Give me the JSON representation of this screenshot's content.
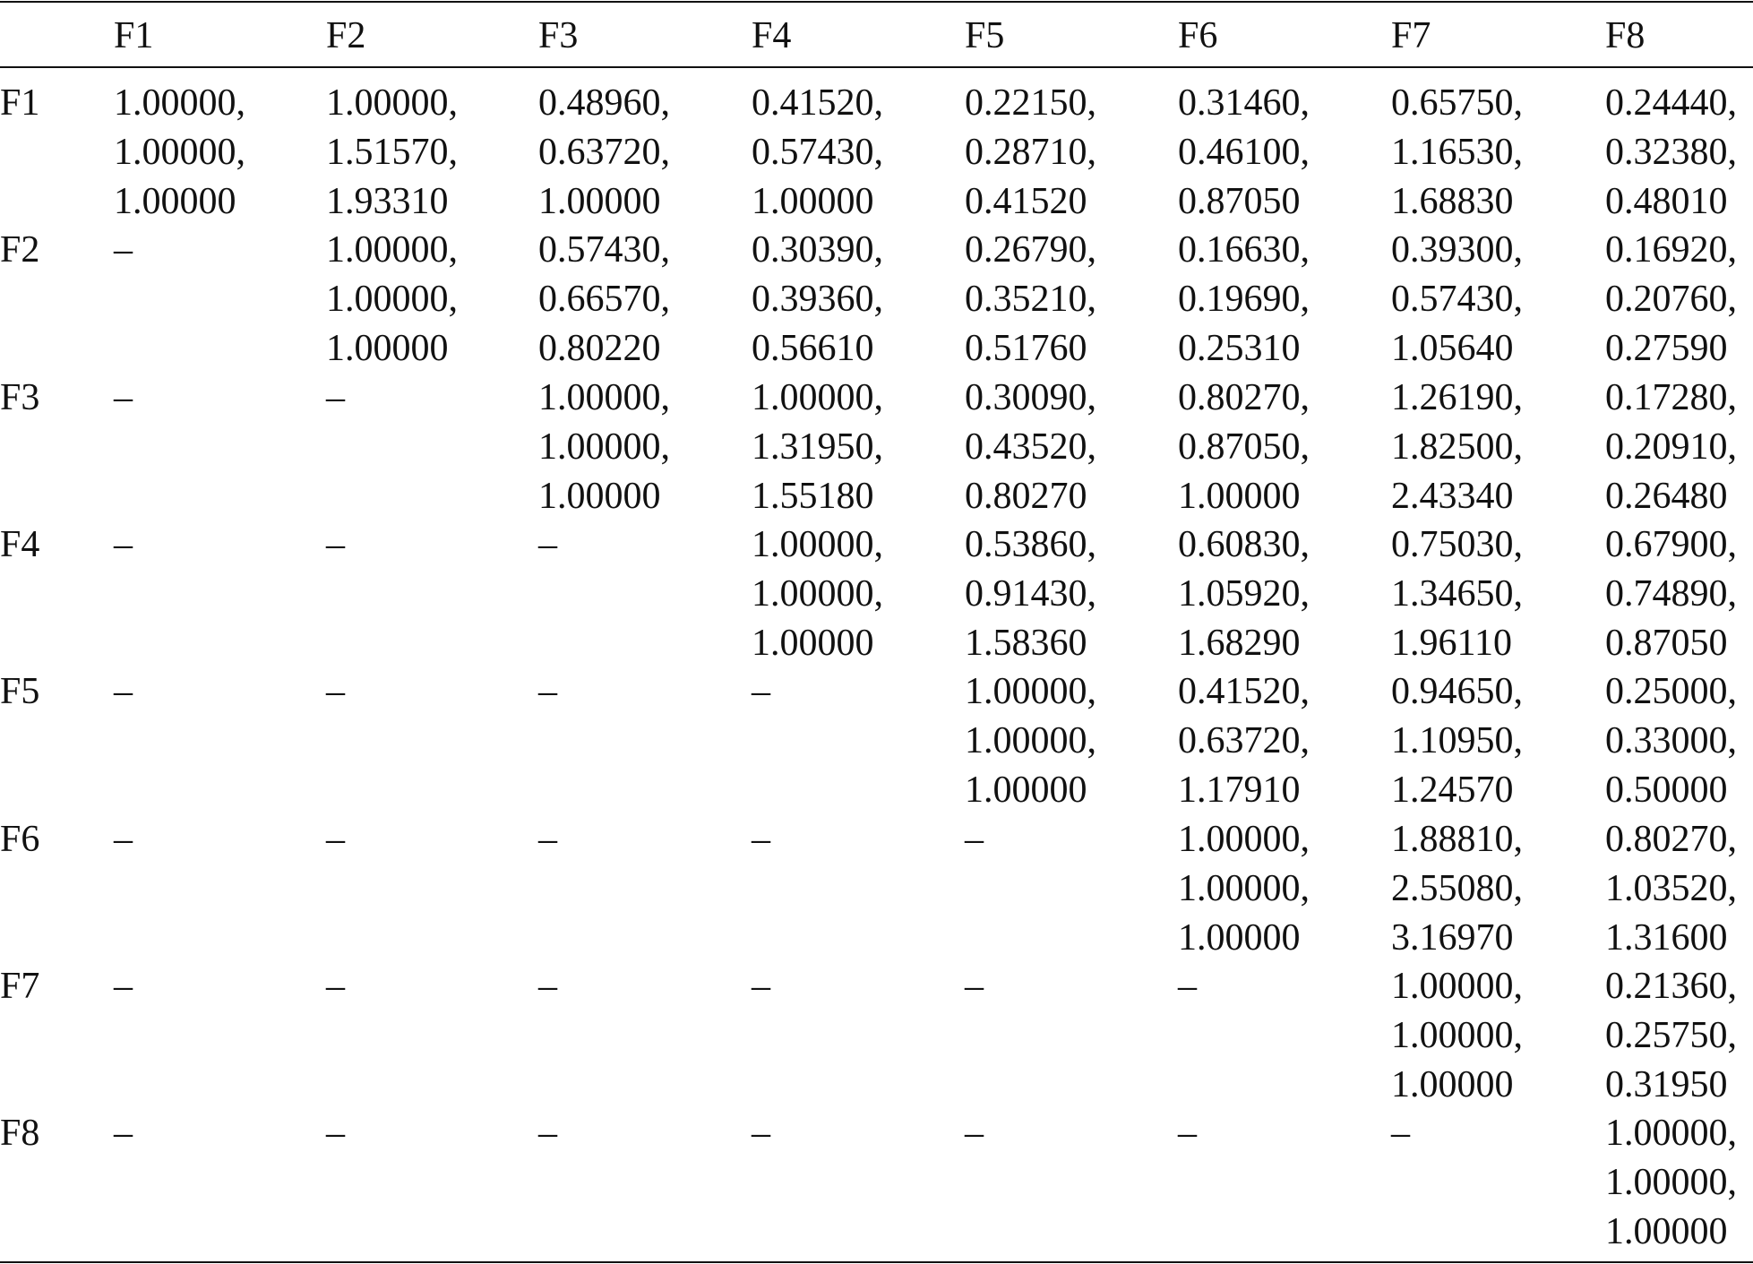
{
  "table": {
    "header": [
      "F1",
      "F2",
      "F3",
      "F4",
      "F5",
      "F6",
      "F7",
      "F8"
    ],
    "rows": [
      {
        "label": "F1",
        "cells": [
          [
            "1.00000,",
            "1.00000,",
            "1.00000"
          ],
          [
            "1.00000,",
            "1.51570,",
            "1.93310"
          ],
          [
            "0.48960,",
            "0.63720,",
            "1.00000"
          ],
          [
            "0.41520,",
            "0.57430,",
            "1.00000"
          ],
          [
            "0.22150,",
            "0.28710,",
            "0.41520"
          ],
          [
            "0.31460,",
            "0.46100,",
            "0.87050"
          ],
          [
            "0.65750,",
            "1.16530,",
            "1.68830"
          ],
          [
            "0.24440,",
            "0.32380,",
            "0.48010"
          ]
        ]
      },
      {
        "label": "F2",
        "cells": [
          [
            "–"
          ],
          [
            "1.00000,",
            "1.00000,",
            "1.00000"
          ],
          [
            "0.57430,",
            "0.66570,",
            "0.80220"
          ],
          [
            "0.30390,",
            "0.39360,",
            "0.56610"
          ],
          [
            "0.26790,",
            "0.35210,",
            "0.51760"
          ],
          [
            "0.16630,",
            "0.19690,",
            "0.25310"
          ],
          [
            "0.39300,",
            "0.57430,",
            "1.05640"
          ],
          [
            "0.16920,",
            "0.20760,",
            "0.27590"
          ]
        ]
      },
      {
        "label": "F3",
        "cells": [
          [
            "–"
          ],
          [
            "–"
          ],
          [
            "1.00000,",
            "1.00000,",
            "1.00000"
          ],
          [
            "1.00000,",
            "1.31950,",
            "1.55180"
          ],
          [
            "0.30090,",
            "0.43520,",
            "0.80270"
          ],
          [
            "0.80270,",
            "0.87050,",
            "1.00000"
          ],
          [
            "1.26190,",
            "1.82500,",
            "2.43340"
          ],
          [
            "0.17280,",
            "0.20910,",
            "0.26480"
          ]
        ]
      },
      {
        "label": "F4",
        "cells": [
          [
            "–"
          ],
          [
            "–"
          ],
          [
            "–"
          ],
          [
            "1.00000,",
            "1.00000,",
            "1.00000"
          ],
          [
            "0.53860,",
            "0.91430,",
            "1.58360"
          ],
          [
            "0.60830,",
            "1.05920,",
            "1.68290"
          ],
          [
            "0.75030,",
            "1.34650,",
            "1.96110"
          ],
          [
            "0.67900,",
            "0.74890,",
            "0.87050"
          ]
        ]
      },
      {
        "label": "F5",
        "cells": [
          [
            "–"
          ],
          [
            "–"
          ],
          [
            "–"
          ],
          [
            "–"
          ],
          [
            "1.00000,",
            "1.00000,",
            "1.00000"
          ],
          [
            "0.41520,",
            "0.63720,",
            "1.17910"
          ],
          [
            "0.94650,",
            "1.10950,",
            "1.24570"
          ],
          [
            "0.25000,",
            "0.33000,",
            "0.50000"
          ]
        ]
      },
      {
        "label": "F6",
        "cells": [
          [
            "–"
          ],
          [
            "–"
          ],
          [
            "–"
          ],
          [
            "–"
          ],
          [
            "–"
          ],
          [
            "1.00000,",
            "1.00000,",
            "1.00000"
          ],
          [
            "1.88810,",
            "2.55080,",
            "3.16970"
          ],
          [
            "0.80270,",
            "1.03520,",
            "1.31600"
          ]
        ]
      },
      {
        "label": "F7",
        "cells": [
          [
            "–"
          ],
          [
            "–"
          ],
          [
            "–"
          ],
          [
            "–"
          ],
          [
            "–"
          ],
          [
            "–"
          ],
          [
            "1.00000,",
            "1.00000,",
            "1.00000"
          ],
          [
            "0.21360,",
            "0.25750,",
            "0.31950"
          ]
        ]
      },
      {
        "label": "F8",
        "cells": [
          [
            "–"
          ],
          [
            "–"
          ],
          [
            "–"
          ],
          [
            "–"
          ],
          [
            "–"
          ],
          [
            "–"
          ],
          [
            "–"
          ],
          [
            "1.00000,",
            "1.00000,",
            "1.00000"
          ]
        ]
      }
    ]
  }
}
